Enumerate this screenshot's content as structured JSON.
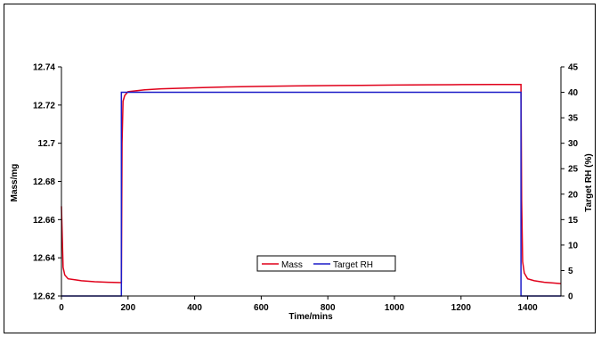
{
  "chart_data": {
    "type": "line",
    "xlabel": "Time/mins",
    "ylabel": "Mass/mg",
    "y2label": "Target RH (%)",
    "xlim": [
      0,
      1500
    ],
    "ylim": [
      12.62,
      12.74
    ],
    "y2lim": [
      0,
      45
    ],
    "x_ticks": [
      0,
      200,
      400,
      600,
      800,
      1000,
      1200,
      1400
    ],
    "y_ticks": [
      12.62,
      12.64,
      12.66,
      12.68,
      12.7,
      12.72,
      12.74
    ],
    "y_tick_labels": [
      "12.62",
      "12.64",
      "12.66",
      "12.68",
      "12.7",
      "12.72",
      "12.74"
    ],
    "y2_ticks": [
      0,
      5,
      10,
      15,
      20,
      25,
      30,
      35,
      40,
      45
    ],
    "legend_position": "bottom-center",
    "grid": false,
    "series": [
      {
        "name": "Mass",
        "axis": "left",
        "color": "#e0001a",
        "x": [
          0,
          5,
          10,
          20,
          40,
          60,
          100,
          140,
          180,
          182,
          185,
          190,
          200,
          250,
          300,
          400,
          500,
          600,
          700,
          800,
          900,
          1000,
          1100,
          1200,
          1300,
          1380,
          1382,
          1385,
          1390,
          1400,
          1420,
          1450,
          1480,
          1500
        ],
        "y": [
          12.667,
          12.635,
          12.631,
          12.629,
          12.6285,
          12.628,
          12.6275,
          12.6272,
          12.627,
          12.7,
          12.722,
          12.725,
          12.727,
          12.728,
          12.7285,
          12.729,
          12.7295,
          12.7298,
          12.73,
          12.7302,
          12.7303,
          12.7305,
          12.7306,
          12.7307,
          12.7308,
          12.7308,
          12.67,
          12.638,
          12.632,
          12.629,
          12.628,
          12.6272,
          12.6268,
          12.6265
        ]
      },
      {
        "name": "Target RH",
        "axis": "right",
        "color": "#1c1cc8",
        "x": [
          0,
          180,
          180,
          1380,
          1380,
          1500
        ],
        "y": [
          0,
          0,
          40,
          40,
          0,
          0
        ]
      }
    ]
  }
}
